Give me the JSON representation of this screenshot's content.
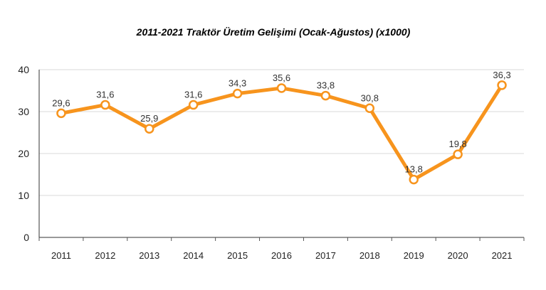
{
  "chart_data": {
    "type": "line",
    "title": "2011-2021 Traktör Üretim Gelişimi (Ocak-Ağustos) (x1000)",
    "xlabel": "",
    "ylabel": "",
    "categories": [
      "2011",
      "2012",
      "2013",
      "2014",
      "2015",
      "2016",
      "2017",
      "2018",
      "2019",
      "2020",
      "2021"
    ],
    "series": [
      {
        "values": [
          29.6,
          31.6,
          25.9,
          31.6,
          34.3,
          35.6,
          33.8,
          30.8,
          13.8,
          19.8,
          36.3
        ],
        "data_labels": [
          "29,6",
          "31,6",
          "25,9",
          "31,6",
          "34,3",
          "35,6",
          "33,8",
          "30,8",
          "13,8",
          "19,8",
          "36,3"
        ],
        "color": "#F7941D"
      }
    ],
    "ylim": [
      0,
      40
    ],
    "yticks": [
      0,
      10,
      20,
      30,
      40
    ],
    "grid": "horizontal",
    "legend": "none"
  }
}
